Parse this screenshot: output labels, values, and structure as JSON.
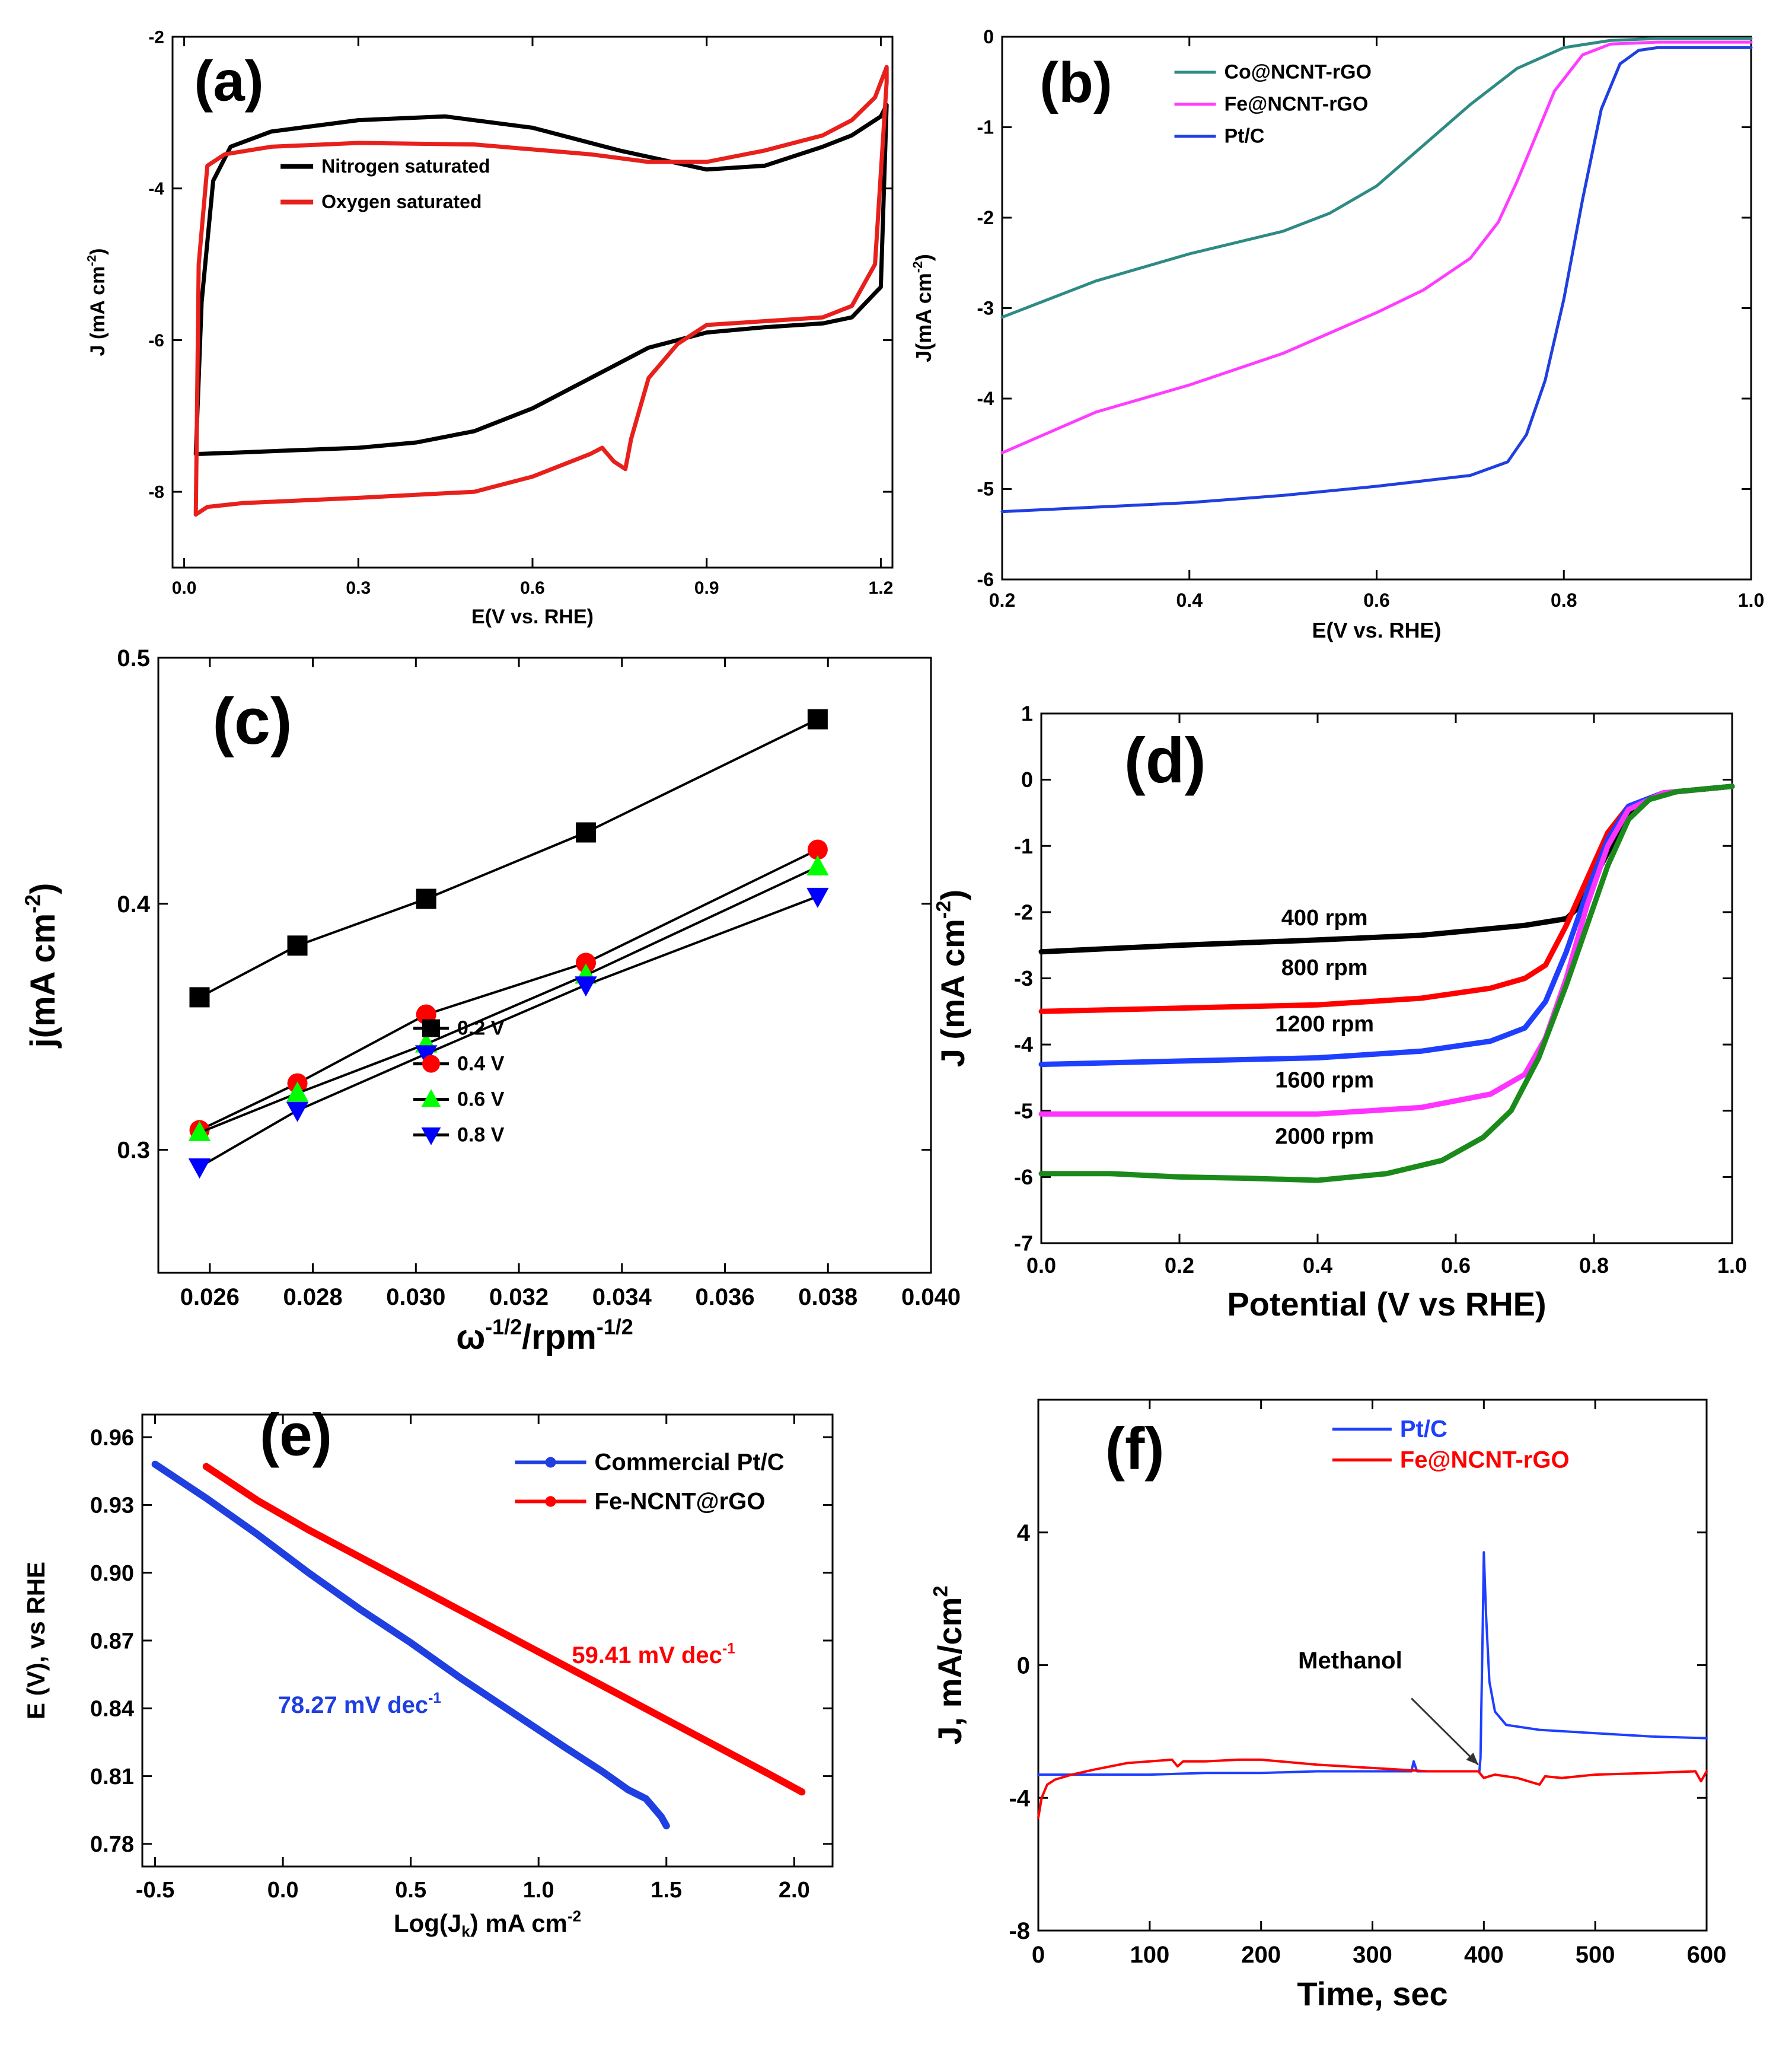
{
  "panels": [
    {
      "id": "a",
      "label": "(a)",
      "font": "serif",
      "xlabel": "E(V vs. RHE)",
      "ylabel": "J (mA cm-2)",
      "xlim": [
        -0.02,
        1.22
      ],
      "ylim": [
        -9,
        -2
      ],
      "xticks": [
        0.0,
        0.3,
        0.6,
        0.9,
        1.2
      ],
      "xtick_labels": [
        "0.0",
        "0.3",
        "0.6",
        "0.9",
        "1.2"
      ],
      "yticks": [
        -8,
        -6,
        -4,
        -2
      ],
      "ytick_labels": [
        "-8",
        "-6",
        "-4",
        "-2"
      ],
      "legend": [
        "Nitrogen saturated",
        "Oxygen saturated"
      ],
      "series": [
        {
          "name": "Nitrogen saturated",
          "color": "#000000",
          "x": [
            0.02,
            0.03,
            0.05,
            0.08,
            0.15,
            0.3,
            0.45,
            0.6,
            0.75,
            0.9,
            1.0,
            1.1,
            1.15,
            1.2,
            1.21,
            1.2,
            1.15,
            1.1,
            1.0,
            0.9,
            0.8,
            0.7,
            0.6,
            0.5,
            0.4,
            0.3,
            0.2,
            0.1,
            0.03,
            0.02
          ],
          "y": [
            -7.5,
            -5.5,
            -3.9,
            -3.45,
            -3.25,
            -3.1,
            -3.05,
            -3.2,
            -3.5,
            -3.75,
            -3.7,
            -3.45,
            -3.3,
            -3.05,
            -2.9,
            -5.3,
            -5.7,
            -5.78,
            -5.83,
            -5.9,
            -6.1,
            -6.5,
            -6.9,
            -7.2,
            -7.35,
            -7.42,
            -7.45,
            -7.48,
            -7.5,
            -7.5
          ]
        },
        {
          "name": "Oxygen saturated",
          "color": "#e8201c",
          "x": [
            0.02,
            0.025,
            0.04,
            0.07,
            0.15,
            0.3,
            0.5,
            0.7,
            0.8,
            0.9,
            1.0,
            1.1,
            1.15,
            1.19,
            1.21,
            1.21,
            1.19,
            1.15,
            1.1,
            1.0,
            0.9,
            0.85,
            0.8,
            0.77,
            0.76,
            0.74,
            0.72,
            0.7,
            0.6,
            0.5,
            0.3,
            0.1,
            0.04,
            0.02
          ],
          "y": [
            -8.3,
            -5.0,
            -3.7,
            -3.55,
            -3.45,
            -3.4,
            -3.42,
            -3.55,
            -3.65,
            -3.65,
            -3.5,
            -3.3,
            -3.1,
            -2.8,
            -2.4,
            -2.6,
            -5.0,
            -5.55,
            -5.7,
            -5.75,
            -5.8,
            -6.05,
            -6.5,
            -7.3,
            -7.7,
            -7.6,
            -7.42,
            -7.5,
            -7.8,
            -8.0,
            -8.08,
            -8.15,
            -8.2,
            -8.3
          ]
        }
      ]
    },
    {
      "id": "b",
      "label": "(b)",
      "font": "serif",
      "xlabel": "E(V vs. RHE)",
      "ylabel": "J(mA cm-2)",
      "xlim": [
        0.2,
        1.0
      ],
      "ylim": [
        -6,
        0
      ],
      "xticks": [
        0.2,
        0.4,
        0.6,
        0.8,
        1.0
      ],
      "xtick_labels": [
        "0.2",
        "0.4",
        "0.6",
        "0.8",
        "1.0"
      ],
      "yticks": [
        -6,
        -5,
        -4,
        -3,
        -2,
        -1,
        0
      ],
      "ytick_labels": [
        "-6",
        "-5",
        "-4",
        "-3",
        "-2",
        "-1",
        "0"
      ],
      "legend": [
        "Co@NCNT-rGO",
        "Fe@NCNT-rGO",
        "Pt/C"
      ],
      "series": [
        {
          "name": "Co@NCNT-rGO",
          "color": "#2e8b84",
          "x": [
            0.2,
            0.3,
            0.4,
            0.5,
            0.55,
            0.6,
            0.65,
            0.7,
            0.75,
            0.8,
            0.85,
            0.9,
            1.0
          ],
          "y": [
            -3.1,
            -2.7,
            -2.4,
            -2.15,
            -1.95,
            -1.65,
            -1.2,
            -0.75,
            -0.35,
            -0.12,
            -0.04,
            -0.02,
            -0.02
          ]
        },
        {
          "name": "Fe@NCNT-rGO",
          "color": "#ff3cff",
          "x": [
            0.2,
            0.3,
            0.4,
            0.5,
            0.6,
            0.65,
            0.7,
            0.73,
            0.75,
            0.77,
            0.79,
            0.82,
            0.85,
            0.9,
            1.0
          ],
          "y": [
            -4.6,
            -4.15,
            -3.85,
            -3.5,
            -3.05,
            -2.8,
            -2.45,
            -2.05,
            -1.6,
            -1.1,
            -0.6,
            -0.2,
            -0.08,
            -0.06,
            -0.06
          ]
        },
        {
          "name": "Pt/C",
          "color": "#1f3fe0",
          "x": [
            0.2,
            0.3,
            0.4,
            0.5,
            0.6,
            0.7,
            0.74,
            0.76,
            0.78,
            0.8,
            0.82,
            0.84,
            0.86,
            0.88,
            0.9,
            1.0
          ],
          "y": [
            -5.25,
            -5.2,
            -5.15,
            -5.07,
            -4.97,
            -4.85,
            -4.7,
            -4.4,
            -3.8,
            -2.9,
            -1.8,
            -0.8,
            -0.3,
            -0.15,
            -0.12,
            -0.12
          ]
        }
      ]
    },
    {
      "id": "c",
      "label": "(c)",
      "font": "sans",
      "xlabel": "ω-1/2/rpm-1/2",
      "ylabel": "j(mA cm-2)",
      "xlim": [
        0.025,
        0.04
      ],
      "ylim": [
        0.25,
        0.5
      ],
      "xticks": [
        0.026,
        0.028,
        0.03,
        0.032,
        0.034,
        0.036,
        0.038,
        0.04
      ],
      "xtick_labels": [
        "0.026",
        "0.028",
        "0.030",
        "0.032",
        "0.034",
        "0.036",
        "0.038",
        "0.040"
      ],
      "yticks": [
        0.3,
        0.4,
        0.5
      ],
      "ytick_labels": [
        "0.3",
        "0.4",
        "0.5"
      ],
      "legend": [
        "0.2 V",
        "0.4 V",
        "0.6 V",
        "0.8 V"
      ],
      "series": [
        {
          "name": "0.2 V",
          "color": "#000000",
          "marker": "square",
          "x": [
            0.0258,
            0.0277,
            0.0302,
            0.0333,
            0.0378
          ],
          "y": [
            0.362,
            0.383,
            0.402,
            0.429,
            0.475
          ]
        },
        {
          "name": "0.4 V",
          "color": "#ff0000",
          "marker": "circle",
          "x": [
            0.0258,
            0.0277,
            0.0302,
            0.0333,
            0.0378
          ],
          "y": [
            0.308,
            0.327,
            0.355,
            0.376,
            0.422
          ]
        },
        {
          "name": "0.6 V",
          "color": "#00ff00",
          "marker": "triangle-up",
          "x": [
            0.0258,
            0.0277,
            0.0302,
            0.0333,
            0.0378
          ],
          "y": [
            0.307,
            0.323,
            0.343,
            0.371,
            0.415
          ]
        },
        {
          "name": "0.8 V",
          "color": "#0000ff",
          "marker": "triangle-down",
          "x": [
            0.0258,
            0.0277,
            0.0302,
            0.0333,
            0.0378
          ],
          "y": [
            0.293,
            0.316,
            0.339,
            0.367,
            0.403
          ]
        }
      ]
    },
    {
      "id": "d",
      "label": "(d)",
      "font": "sans",
      "xlabel": "Potential (V vs RHE)",
      "ylabel": "J (mA cm-2)",
      "xlim": [
        0,
        1
      ],
      "ylim": [
        -7,
        1
      ],
      "xticks": [
        0.0,
        0.2,
        0.4,
        0.6,
        0.8,
        1.0
      ],
      "xtick_labels": [
        "0.0",
        "0.2",
        "0.4",
        "0.6",
        "0.8",
        "1.0"
      ],
      "yticks": [
        -7,
        -6,
        -5,
        -4,
        -3,
        -2,
        -1,
        0,
        1
      ],
      "ytick_labels": [
        "-7",
        "-6",
        "-5",
        "-4",
        "-3",
        "-2",
        "-1",
        "0",
        "1"
      ],
      "annotations": [
        {
          "text": "400 rpm",
          "x": 0.41,
          "y": -2.2
        },
        {
          "text": "800 rpm",
          "x": 0.41,
          "y": -2.95
        },
        {
          "text": "1200 rpm",
          "x": 0.41,
          "y": -3.8
        },
        {
          "text": "1600 rpm",
          "x": 0.41,
          "y": -4.65
        },
        {
          "text": "2000 rpm",
          "x": 0.41,
          "y": -5.5
        }
      ],
      "series": [
        {
          "name": "400 rpm",
          "color": "#000000",
          "x": [
            0,
            0.2,
            0.4,
            0.55,
            0.7,
            0.76,
            0.78,
            0.8,
            0.83,
            0.86,
            0.9,
            1.0
          ],
          "y": [
            -2.6,
            -2.5,
            -2.42,
            -2.35,
            -2.2,
            -2.1,
            -1.9,
            -1.5,
            -0.9,
            -0.4,
            -0.2,
            -0.1
          ]
        },
        {
          "name": "800 rpm",
          "color": "#ff0000",
          "x": [
            0,
            0.2,
            0.4,
            0.55,
            0.65,
            0.7,
            0.73,
            0.76,
            0.79,
            0.82,
            0.85,
            0.9,
            1.0
          ],
          "y": [
            -3.5,
            -3.45,
            -3.4,
            -3.3,
            -3.15,
            -3.0,
            -2.8,
            -2.2,
            -1.5,
            -0.8,
            -0.4,
            -0.2,
            -0.1
          ]
        },
        {
          "name": "1200 rpm",
          "color": "#1f3fff",
          "x": [
            0,
            0.2,
            0.4,
            0.55,
            0.65,
            0.7,
            0.73,
            0.76,
            0.79,
            0.82,
            0.85,
            0.9,
            1.0
          ],
          "y": [
            -4.3,
            -4.25,
            -4.2,
            -4.1,
            -3.95,
            -3.75,
            -3.35,
            -2.6,
            -1.7,
            -0.9,
            -0.4,
            -0.2,
            -0.1
          ]
        },
        {
          "name": "1600 rpm",
          "color": "#ff33ff",
          "x": [
            0,
            0.2,
            0.4,
            0.55,
            0.65,
            0.7,
            0.73,
            0.76,
            0.79,
            0.82,
            0.85,
            0.9,
            1.0
          ],
          "y": [
            -5.05,
            -5.05,
            -5.05,
            -4.95,
            -4.75,
            -4.45,
            -3.9,
            -3.0,
            -1.9,
            -1.0,
            -0.45,
            -0.2,
            -0.1
          ]
        },
        {
          "name": "2000 rpm",
          "color": "#1a8a1a",
          "x": [
            0,
            0.1,
            0.2,
            0.3,
            0.4,
            0.5,
            0.58,
            0.64,
            0.68,
            0.72,
            0.76,
            0.79,
            0.82,
            0.85,
            0.88,
            0.92,
            1.0
          ],
          "y": [
            -5.95,
            -5.95,
            -6.0,
            -6.02,
            -6.05,
            -5.95,
            -5.75,
            -5.4,
            -5.0,
            -4.2,
            -3.1,
            -2.2,
            -1.3,
            -0.6,
            -0.3,
            -0.18,
            -0.1
          ]
        }
      ]
    },
    {
      "id": "e",
      "label": "(e)",
      "font": "sans",
      "xlabel": "Log(Jk) mA cm-2",
      "ylabel": "E (V), vs RHE",
      "xlim": [
        -0.55,
        2.15
      ],
      "ylim": [
        0.77,
        0.97
      ],
      "xticks": [
        -0.5,
        0.0,
        0.5,
        1.0,
        1.5,
        2.0
      ],
      "xtick_labels": [
        "-0.5",
        "0.0",
        "0.5",
        "1.0",
        "1.5",
        "2.0"
      ],
      "yticks": [
        0.78,
        0.81,
        0.84,
        0.87,
        0.9,
        0.93,
        0.96
      ],
      "ytick_labels": [
        "0.78",
        "0.81",
        "0.84",
        "0.87",
        "0.90",
        "0.93",
        "0.96"
      ],
      "legend": [
        "Commercial Pt/C",
        "Fe-NCNT@rGO"
      ],
      "annotations": [
        {
          "text": "78.27 mV dec-1",
          "color": "#1f3fe0",
          "x": 0.3,
          "y": 0.838
        },
        {
          "text": "59.41 mV dec-1",
          "color": "#ff0000",
          "x": 1.45,
          "y": 0.86
        }
      ],
      "series": [
        {
          "name": "Commercial Pt/C",
          "color": "#1f3fe0",
          "x": [
            -0.5,
            -0.3,
            -0.1,
            0.1,
            0.3,
            0.5,
            0.7,
            0.9,
            1.1,
            1.25,
            1.35,
            1.42,
            1.48,
            1.5
          ],
          "y": [
            0.948,
            0.933,
            0.917,
            0.9,
            0.884,
            0.869,
            0.853,
            0.838,
            0.823,
            0.812,
            0.804,
            0.8,
            0.792,
            0.788
          ]
        },
        {
          "name": "Fe-NCNT@rGO",
          "color": "#ff0000",
          "x": [
            -0.3,
            -0.1,
            0.1,
            0.3,
            0.5,
            0.7,
            0.9,
            1.1,
            1.3,
            1.5,
            1.7,
            1.9,
            2.03
          ],
          "y": [
            0.947,
            0.932,
            0.919,
            0.907,
            0.895,
            0.883,
            0.871,
            0.859,
            0.847,
            0.835,
            0.823,
            0.811,
            0.803
          ]
        }
      ]
    },
    {
      "id": "f",
      "label": "(f)",
      "font": "sans",
      "xlabel": "Time, sec",
      "ylabel": "J, mA/cm2",
      "xlim": [
        0,
        600
      ],
      "ylim": [
        -8,
        8
      ],
      "xticks": [
        0,
        100,
        200,
        300,
        400,
        500,
        600
      ],
      "xtick_labels": [
        "0",
        "100",
        "200",
        "300",
        "400",
        "500",
        "600"
      ],
      "yticks": [
        -8,
        -4,
        0,
        4
      ],
      "ytick_labels": [
        "-8",
        "-4",
        "0",
        "4"
      ],
      "legend": [
        "Pt/C",
        "Fe@NCNT-rGO"
      ],
      "annotations": [
        {
          "text": "Methanol",
          "x": 280,
          "y": -0.1
        }
      ],
      "series": [
        {
          "name": "Pt/C",
          "color": "#1f3fff",
          "x": [
            0,
            50,
            100,
            150,
            200,
            250,
            300,
            335,
            337,
            340,
            350,
            380,
            396,
            397,
            399,
            400,
            402,
            405,
            410,
            420,
            450,
            500,
            550,
            600
          ],
          "y": [
            -3.3,
            -3.3,
            -3.3,
            -3.25,
            -3.25,
            -3.2,
            -3.2,
            -3.2,
            -2.9,
            -3.2,
            -3.2,
            -3.2,
            -3.2,
            -2.8,
            1.2,
            3.4,
            1.5,
            -0.5,
            -1.4,
            -1.8,
            -1.95,
            -2.05,
            -2.15,
            -2.2
          ]
        },
        {
          "name": "Fe@NCNT-rGO",
          "color": "#ff0000",
          "x": [
            0,
            3,
            8,
            15,
            30,
            50,
            80,
            100,
            120,
            125,
            130,
            150,
            180,
            200,
            250,
            300,
            350,
            395,
            400,
            410,
            430,
            450,
            455,
            470,
            500,
            550,
            590,
            595,
            600
          ],
          "y": [
            -4.6,
            -4.0,
            -3.6,
            -3.45,
            -3.3,
            -3.15,
            -2.95,
            -2.9,
            -2.85,
            -3.05,
            -2.9,
            -2.9,
            -2.85,
            -2.85,
            -3.0,
            -3.1,
            -3.2,
            -3.2,
            -3.4,
            -3.3,
            -3.4,
            -3.6,
            -3.35,
            -3.4,
            -3.3,
            -3.25,
            -3.2,
            -3.5,
            -3.2
          ]
        }
      ]
    }
  ],
  "methanol_arrow_target": {
    "x": 395,
    "y": -3.0
  }
}
